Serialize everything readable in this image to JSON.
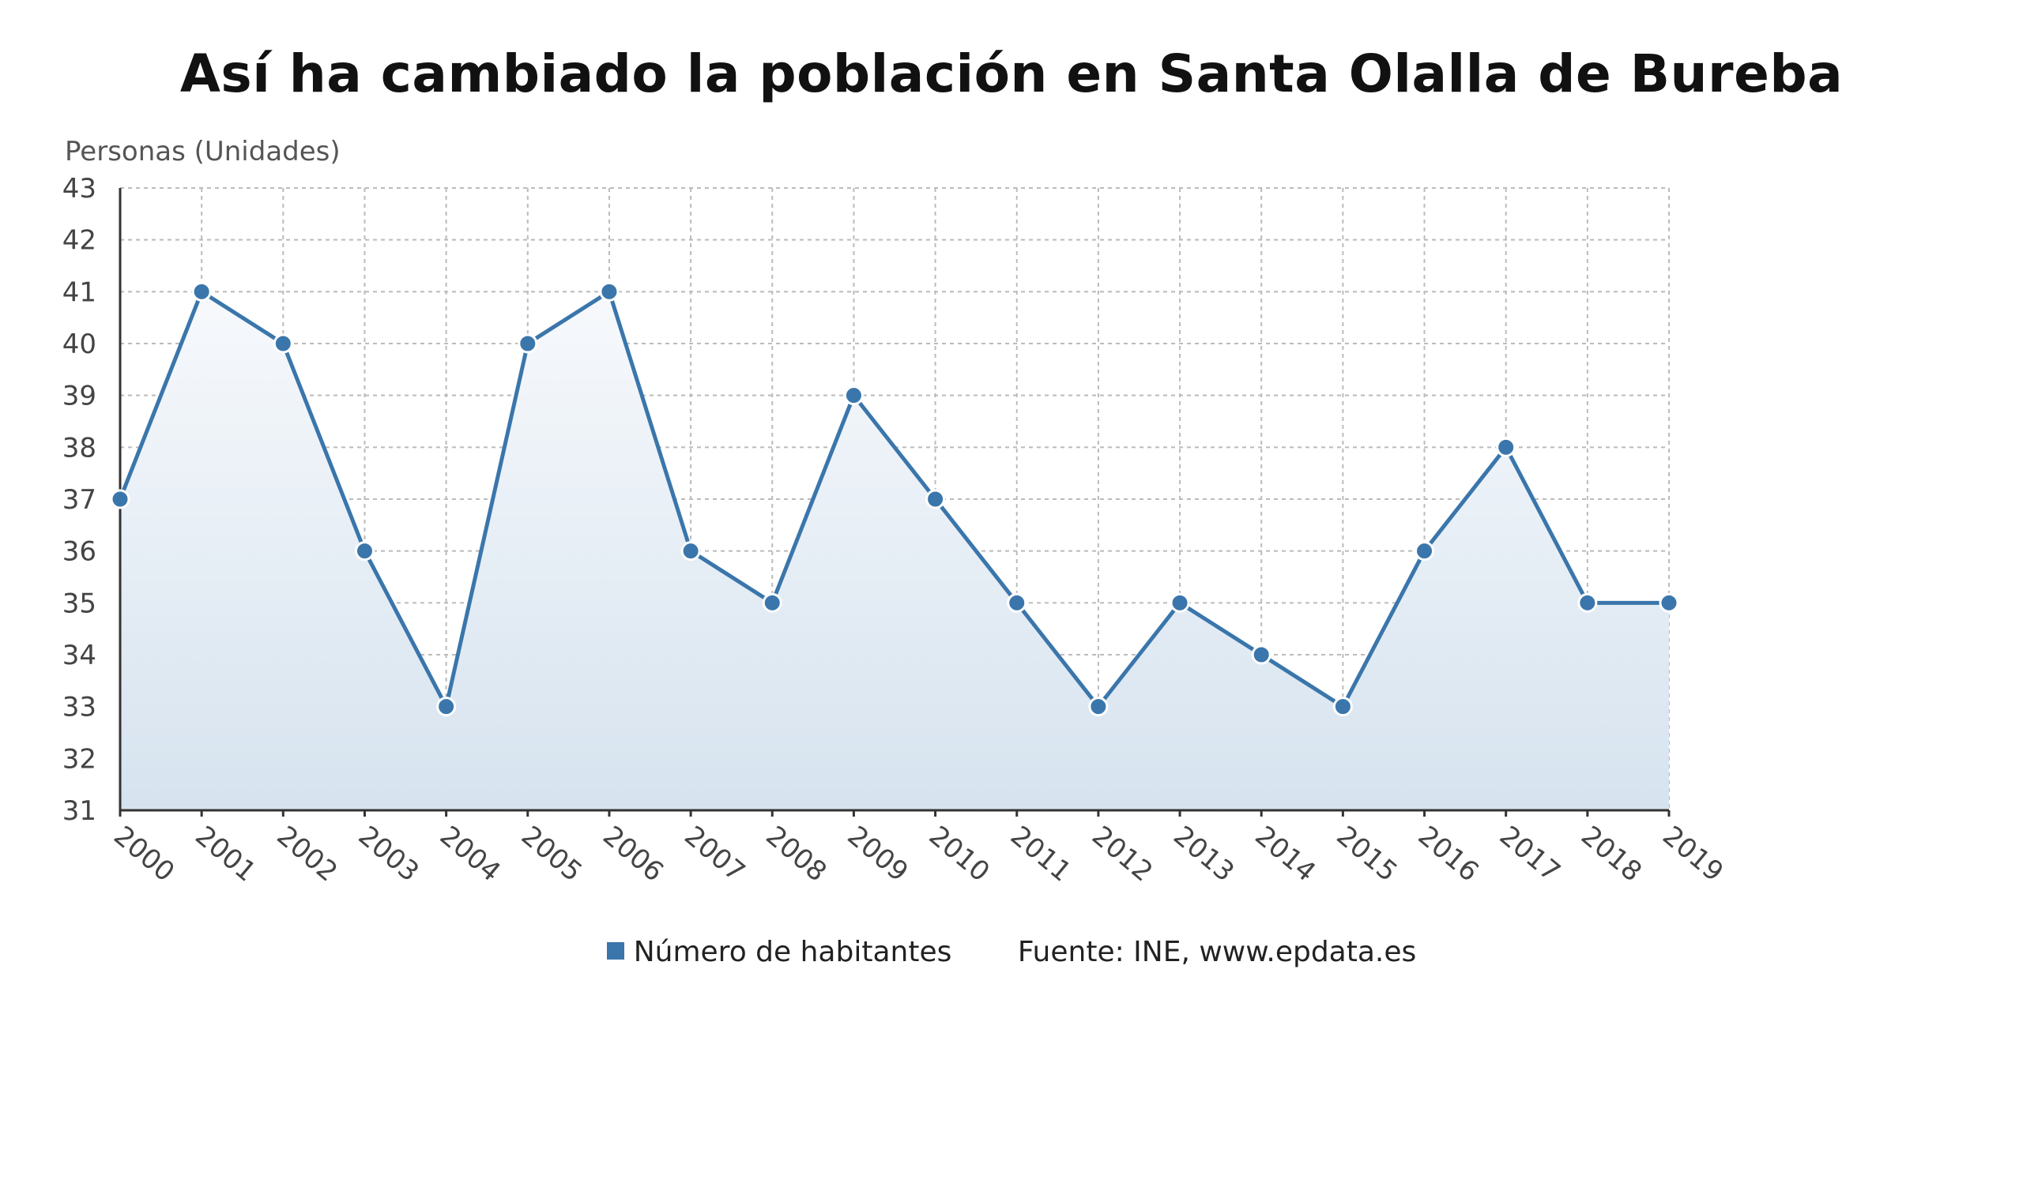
{
  "chart_data": {
    "type": "area",
    "title": "Así ha cambiado la población en Santa Olalla de Bureba",
    "ylabel": "Personas (Unidades)",
    "xlabel": "",
    "categories": [
      "2000",
      "2001",
      "2002",
      "2003",
      "2004",
      "2005",
      "2006",
      "2007",
      "2008",
      "2009",
      "2010",
      "2011",
      "2012",
      "2013",
      "2014",
      "2015",
      "2016",
      "2017",
      "2018",
      "2019"
    ],
    "series": [
      {
        "name": "Número de habitantes",
        "values": [
          37,
          41,
          40,
          36,
          33,
          40,
          41,
          36,
          35,
          39,
          37,
          35,
          33,
          35,
          34,
          33,
          36,
          38,
          35,
          35
        ]
      }
    ],
    "ylim": [
      31,
      43
    ],
    "yticks": [
      31,
      32,
      33,
      34,
      35,
      36,
      37,
      38,
      39,
      40,
      41,
      42,
      43
    ],
    "grid": true,
    "legend_position": "bottom",
    "source": "Fuente: INE, www.epdata.es",
    "colors": {
      "line": "#3a76ab",
      "area_top": "#f7f9fc",
      "area_bottom": "#d6e3ef",
      "grid": "#bbbbbb",
      "axis": "#333333"
    }
  }
}
